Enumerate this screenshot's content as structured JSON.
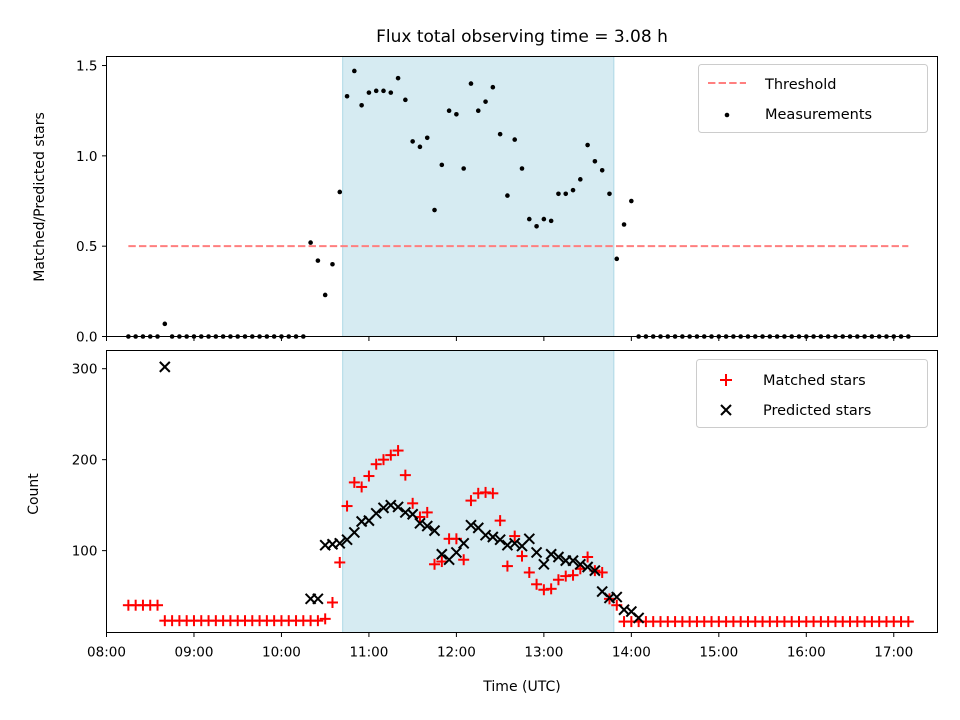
{
  "title": "Flux total observing time = 3.08 h",
  "colors": {
    "threshold": "#ff7f7f",
    "measurements": "#000000",
    "matched": "#ff0000",
    "predicted": "#000000",
    "span": "#add8e6"
  },
  "chart_data": [
    {
      "type": "scatter",
      "title": "Flux total observing time = 3.08 h",
      "xlabel": "",
      "ylabel": "Matched/Predicted stars",
      "xlim": [
        "08:00",
        "17:30"
      ],
      "ylim": [
        0,
        1.55
      ],
      "yticks": [
        "0.0",
        "0.5",
        "1.0",
        "1.5"
      ],
      "highlight_span": [
        "10:42",
        "13:48"
      ],
      "legend": {
        "placement": "top-right",
        "entries": [
          "Threshold",
          "Measurements"
        ]
      },
      "threshold": {
        "name": "Threshold",
        "y": 0.5,
        "x_range": [
          "08:15",
          "17:10"
        ]
      },
      "measurements": {
        "name": "Measurements",
        "x": [
          "08:15",
          "08:20",
          "08:25",
          "08:30",
          "08:35",
          "08:40",
          "08:45",
          "08:50",
          "08:55",
          "09:00",
          "09:05",
          "09:10",
          "09:15",
          "09:20",
          "09:25",
          "09:30",
          "09:35",
          "09:40",
          "09:45",
          "09:50",
          "09:55",
          "10:00",
          "10:05",
          "10:10",
          "10:15",
          "10:20",
          "10:25",
          "10:30",
          "10:35",
          "10:40",
          "10:45",
          "10:50",
          "10:55",
          "11:00",
          "11:05",
          "11:10",
          "11:15",
          "11:20",
          "11:25",
          "11:30",
          "11:35",
          "11:40",
          "11:45",
          "11:50",
          "11:55",
          "12:00",
          "12:05",
          "12:10",
          "12:15",
          "12:20",
          "12:25",
          "12:30",
          "12:35",
          "12:40",
          "12:45",
          "12:50",
          "12:55",
          "13:00",
          "13:05",
          "13:10",
          "13:15",
          "13:20",
          "13:25",
          "13:30",
          "13:35",
          "13:40",
          "13:45",
          "13:50",
          "13:55",
          "14:00",
          "14:05",
          "14:10",
          "14:15",
          "14:20",
          "14:25",
          "14:30",
          "14:35",
          "14:40",
          "14:45",
          "14:50",
          "14:55",
          "15:00",
          "15:05",
          "15:10",
          "15:15",
          "15:20",
          "15:25",
          "15:30",
          "15:35",
          "15:40",
          "15:45",
          "15:50",
          "15:55",
          "16:00",
          "16:05",
          "16:10",
          "16:15",
          "16:20",
          "16:25",
          "16:30",
          "16:35",
          "16:40",
          "16:45",
          "16:50",
          "16:55",
          "17:00",
          "17:05",
          "17:10"
        ],
        "y": [
          0,
          0,
          0,
          0,
          0,
          0.07,
          0,
          0,
          0,
          0,
          0,
          0,
          0,
          0,
          0,
          0,
          0,
          0,
          0,
          0,
          0,
          0,
          0,
          0,
          0,
          0.52,
          0.42,
          0.23,
          0.4,
          0.8,
          1.33,
          1.47,
          1.28,
          1.35,
          1.36,
          1.36,
          1.35,
          1.43,
          1.31,
          1.08,
          1.05,
          1.1,
          0.7,
          0.95,
          1.25,
          1.23,
          0.93,
          1.4,
          1.25,
          1.3,
          1.38,
          1.12,
          0.78,
          1.09,
          0.93,
          0.65,
          0.61,
          0.65,
          0.64,
          0.79,
          0.79,
          0.81,
          0.87,
          1.06,
          0.97,
          0.92,
          0.79,
          0.43,
          0.62,
          0.75,
          0,
          0,
          0,
          0,
          0,
          0,
          0,
          0,
          0,
          0,
          0,
          0,
          0,
          0,
          0,
          0,
          0,
          0,
          0,
          0,
          0,
          0,
          0,
          0,
          0,
          0,
          0,
          0,
          0,
          0,
          0,
          0,
          0,
          0,
          0,
          0,
          0,
          0
        ]
      }
    },
    {
      "type": "scatter",
      "xlabel": "Time (UTC)",
      "ylabel": "Count",
      "xlim": [
        "08:00",
        "17:30"
      ],
      "ylim": [
        10,
        320
      ],
      "yticks": [
        "100",
        "200",
        "300"
      ],
      "xticks": [
        "08:00",
        "09:00",
        "10:00",
        "11:00",
        "12:00",
        "13:00",
        "14:00",
        "15:00",
        "16:00",
        "17:00"
      ],
      "highlight_span": [
        "10:42",
        "13:48"
      ],
      "legend": {
        "placement": "top-right",
        "entries": [
          "Matched stars",
          "Predicted stars"
        ]
      },
      "series": [
        {
          "name": "Matched stars",
          "marker": "plus",
          "x": [
            "08:15",
            "08:20",
            "08:25",
            "08:30",
            "08:35",
            "08:40",
            "08:45",
            "08:50",
            "08:55",
            "09:00",
            "09:05",
            "09:10",
            "09:15",
            "09:20",
            "09:25",
            "09:30",
            "09:35",
            "09:40",
            "09:45",
            "09:50",
            "09:55",
            "10:00",
            "10:05",
            "10:10",
            "10:15",
            "10:20",
            "10:25",
            "10:30",
            "10:35",
            "10:40",
            "10:45",
            "10:50",
            "10:55",
            "11:00",
            "11:05",
            "11:10",
            "11:15",
            "11:20",
            "11:25",
            "11:30",
            "11:35",
            "11:40",
            "11:45",
            "11:50",
            "11:55",
            "12:00",
            "12:05",
            "12:10",
            "12:15",
            "12:20",
            "12:25",
            "12:30",
            "12:35",
            "12:40",
            "12:45",
            "12:50",
            "12:55",
            "13:00",
            "13:05",
            "13:10",
            "13:15",
            "13:20",
            "13:25",
            "13:30",
            "13:35",
            "13:40",
            "13:45",
            "13:50",
            "13:55",
            "14:00",
            "14:05",
            "14:10",
            "14:15",
            "14:20",
            "14:25",
            "14:30",
            "14:35",
            "14:40",
            "14:45",
            "14:50",
            "14:55",
            "15:00",
            "15:05",
            "15:10",
            "15:15",
            "15:20",
            "15:25",
            "15:30",
            "15:35",
            "15:40",
            "15:45",
            "15:50",
            "15:55",
            "16:00",
            "16:05",
            "16:10",
            "16:15",
            "16:20",
            "16:25",
            "16:30",
            "16:35",
            "16:40",
            "16:45",
            "16:50",
            "16:55",
            "17:00",
            "17:05",
            "17:10"
          ],
          "y": [
            40,
            40,
            40,
            40,
            40,
            23,
            23,
            23,
            23,
            23,
            23,
            23,
            23,
            23,
            23,
            23,
            23,
            23,
            23,
            23,
            23,
            23,
            23,
            23,
            23,
            23,
            23,
            25,
            43,
            87,
            149,
            175,
            170,
            182,
            195,
            200,
            205,
            210,
            183,
            152,
            137,
            142,
            85,
            88,
            113,
            113,
            90,
            155,
            163,
            164,
            163,
            133,
            83,
            116,
            94,
            76,
            63,
            57,
            58,
            68,
            72,
            73,
            80,
            93,
            78,
            76,
            47,
            40,
            22,
            22,
            22,
            22,
            22,
            22,
            22,
            22,
            22,
            22,
            22,
            22,
            22,
            22,
            22,
            22,
            22,
            22,
            22,
            22,
            22,
            22,
            22,
            22,
            22,
            22,
            22,
            22,
            22,
            22,
            22,
            22,
            22,
            22,
            22,
            22,
            22,
            22,
            22,
            22
          ]
        },
        {
          "name": "Predicted stars",
          "marker": "x",
          "x": [
            "08:40",
            "10:20",
            "10:25",
            "10:30",
            "10:35",
            "10:40",
            "10:45",
            "10:50",
            "10:55",
            "11:00",
            "11:05",
            "11:10",
            "11:15",
            "11:20",
            "11:25",
            "11:30",
            "11:35",
            "11:40",
            "11:45",
            "11:50",
            "11:55",
            "12:00",
            "12:05",
            "12:10",
            "12:15",
            "12:20",
            "12:25",
            "12:30",
            "12:35",
            "12:40",
            "12:45",
            "12:50",
            "12:55",
            "13:00",
            "13:05",
            "13:10",
            "13:15",
            "13:20",
            "13:25",
            "13:30",
            "13:35",
            "13:40",
            "13:45",
            "13:50",
            "13:55",
            "14:00",
            "14:05"
          ],
          "y": [
            302,
            47,
            47,
            106,
            107,
            108,
            112,
            120,
            132,
            133,
            141,
            147,
            150,
            148,
            142,
            140,
            130,
            127,
            122,
            96,
            90,
            98,
            108,
            128,
            125,
            117,
            115,
            112,
            106,
            108,
            105,
            113,
            98,
            85,
            96,
            93,
            89,
            89,
            85,
            82,
            78,
            55,
            48,
            49,
            35,
            33,
            26
          ]
        }
      ]
    }
  ]
}
